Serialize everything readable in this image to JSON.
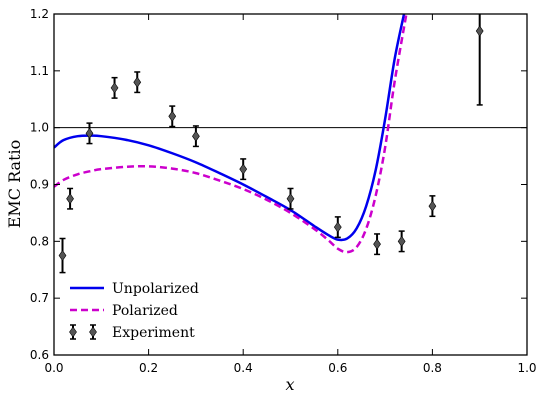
{
  "chart_data": {
    "type": "line",
    "xlabel": "x",
    "ylabel": "EMC Ratio",
    "xlim": [
      0.0,
      1.0
    ],
    "ylim": [
      0.6,
      1.2
    ],
    "x_ticks": [
      "0.0",
      "0.2",
      "0.4",
      "0.6",
      "0.8",
      "1.0"
    ],
    "y_ticks": [
      "0.6",
      "0.7",
      "0.8",
      "0.9",
      "1.0",
      "1.1",
      "1.2"
    ],
    "reference_line_y": 1.0,
    "legend_position": "lower-left",
    "series": [
      {
        "name": "Unpolarized",
        "style": "solid",
        "color": "#0000ee",
        "x": [
          0.0,
          0.02,
          0.05,
          0.08,
          0.1,
          0.15,
          0.2,
          0.25,
          0.3,
          0.35,
          0.4,
          0.45,
          0.5,
          0.55,
          0.58,
          0.6,
          0.62,
          0.64,
          0.66,
          0.68,
          0.7,
          0.72,
          0.74
        ],
        "y": [
          0.965,
          0.978,
          0.985,
          0.986,
          0.985,
          0.979,
          0.969,
          0.955,
          0.939,
          0.92,
          0.9,
          0.878,
          0.855,
          0.827,
          0.811,
          0.803,
          0.805,
          0.823,
          0.862,
          0.925,
          1.015,
          1.12,
          1.2
        ]
      },
      {
        "name": "Polarized",
        "style": "dashed",
        "color": "#cc00cc",
        "x": [
          0.0,
          0.02,
          0.05,
          0.08,
          0.1,
          0.15,
          0.2,
          0.25,
          0.3,
          0.35,
          0.4,
          0.45,
          0.5,
          0.55,
          0.58,
          0.6,
          0.62,
          0.64,
          0.66,
          0.68,
          0.7,
          0.72,
          0.745
        ],
        "y": [
          0.896,
          0.908,
          0.918,
          0.924,
          0.927,
          0.931,
          0.932,
          0.928,
          0.92,
          0.907,
          0.892,
          0.873,
          0.85,
          0.822,
          0.802,
          0.787,
          0.781,
          0.79,
          0.822,
          0.88,
          0.965,
          1.08,
          1.2
        ]
      },
      {
        "name": "Experiment",
        "style": "errorbar",
        "color": "#555555",
        "x": [
          0.018,
          0.034,
          0.075,
          0.128,
          0.176,
          0.25,
          0.3,
          0.4,
          0.5,
          0.6,
          0.683,
          0.735,
          0.8,
          0.9
        ],
        "y": [
          0.775,
          0.875,
          0.99,
          1.07,
          1.08,
          1.02,
          0.985,
          0.927,
          0.875,
          0.825,
          0.795,
          0.8,
          0.862,
          1.17
        ],
        "yerr": [
          0.03,
          0.018,
          0.018,
          0.018,
          0.018,
          0.018,
          0.018,
          0.018,
          0.018,
          0.018,
          0.018,
          0.018,
          0.018,
          0.13
        ]
      }
    ]
  }
}
